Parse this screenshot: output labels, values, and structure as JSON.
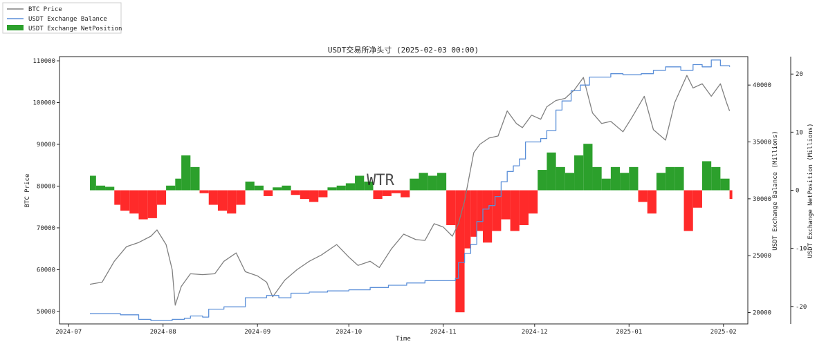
{
  "chart_data": {
    "type": "line",
    "title": "USDT交易所净头寸 (2025-02-03 00:00)",
    "xlabel": "Time",
    "ylabel_left": "BTC Price",
    "ylabel_right1": "USDT Exchange Balance (Millions)",
    "ylabel_right2": "USDT Exchange NetPosition (Millions)",
    "watermark": "WTR",
    "legend_position": "top-left",
    "legend": [
      {
        "label": "BTC Price",
        "color": "#808080",
        "kind": "line"
      },
      {
        "label": "USDT Exchange Balance",
        "color": "#5b8fd8",
        "kind": "line"
      },
      {
        "label": "USDT Exchange NetPosition",
        "color": "#2ca02c",
        "kind": "bar"
      }
    ],
    "x_range": [
      "2024-06-28",
      "2025-02-09"
    ],
    "x_ticks": [
      "2024-07",
      "2024-08",
      "2024-09",
      "2024-10",
      "2024-11",
      "2024-12",
      "2025-01",
      "2025-02"
    ],
    "y_left": {
      "range": [
        47000,
        111000
      ],
      "ticks": [
        50000,
        60000,
        70000,
        80000,
        90000,
        100000,
        110000
      ]
    },
    "y_right1": {
      "range": [
        19000,
        42500
      ],
      "ticks": [
        20000,
        25000,
        30000,
        35000,
        40000
      ]
    },
    "y_right2": {
      "range": [
        -23,
        23
      ],
      "ticks": [
        -20,
        -10,
        0,
        10,
        20
      ]
    },
    "positive_color": "#2ca02c",
    "negative_color": "#ff2a2a",
    "series": [
      {
        "name": "BTC Price",
        "axis": "left",
        "color": "#808080",
        "x": [
          "2024-07-08",
          "2024-07-12",
          "2024-07-16",
          "2024-07-20",
          "2024-07-24",
          "2024-07-28",
          "2024-07-30",
          "2024-08-02",
          "2024-08-04",
          "2024-08-05",
          "2024-08-07",
          "2024-08-10",
          "2024-08-14",
          "2024-08-18",
          "2024-08-21",
          "2024-08-25",
          "2024-08-28",
          "2024-09-01",
          "2024-09-04",
          "2024-09-06",
          "2024-09-10",
          "2024-09-14",
          "2024-09-18",
          "2024-09-22",
          "2024-09-27",
          "2024-10-01",
          "2024-10-04",
          "2024-10-08",
          "2024-10-11",
          "2024-10-15",
          "2024-10-19",
          "2024-10-23",
          "2024-10-26",
          "2024-10-29",
          "2024-11-01",
          "2024-11-04",
          "2024-11-06",
          "2024-11-08",
          "2024-11-11",
          "2024-11-13",
          "2024-11-16",
          "2024-11-19",
          "2024-11-22",
          "2024-11-25",
          "2024-11-27",
          "2024-11-30",
          "2024-12-03",
          "2024-12-05",
          "2024-12-08",
          "2024-12-11",
          "2024-12-14",
          "2024-12-17",
          "2024-12-20",
          "2024-12-23",
          "2024-12-26",
          "2024-12-30",
          "2025-01-02",
          "2025-01-06",
          "2025-01-09",
          "2025-01-13",
          "2025-01-16",
          "2025-01-20",
          "2025-01-22",
          "2025-01-25",
          "2025-01-28",
          "2025-01-31",
          "2025-02-02",
          "2025-02-03"
        ],
        "values": [
          56500,
          57000,
          62000,
          65500,
          66500,
          68000,
          69500,
          66000,
          60000,
          51500,
          56000,
          59000,
          58800,
          59000,
          62000,
          64000,
          59500,
          58500,
          57000,
          53500,
          57500,
          60000,
          62000,
          63500,
          66000,
          63000,
          61000,
          62000,
          60500,
          65000,
          68500,
          67200,
          67000,
          71000,
          70200,
          68000,
          71000,
          76500,
          88000,
          90000,
          91500,
          92000,
          98000,
          95000,
          94000,
          97000,
          96000,
          99000,
          100500,
          101000,
          103000,
          106000,
          97500,
          95000,
          95500,
          93000,
          96500,
          101500,
          93500,
          91000,
          100000,
          106500,
          103500,
          104500,
          101500,
          104500,
          100000,
          98000
        ]
      },
      {
        "name": "USDT Exchange Balance",
        "axis": "right1",
        "color": "#5b8fd8",
        "x": [
          "2024-07-08",
          "2024-07-18",
          "2024-07-24",
          "2024-07-28",
          "2024-08-04",
          "2024-08-08",
          "2024-08-10",
          "2024-08-14",
          "2024-08-16",
          "2024-08-21",
          "2024-08-25",
          "2024-08-28",
          "2024-09-04",
          "2024-09-08",
          "2024-09-12",
          "2024-09-18",
          "2024-09-24",
          "2024-10-01",
          "2024-10-08",
          "2024-10-14",
          "2024-10-20",
          "2024-10-26",
          "2024-11-01",
          "2024-11-05",
          "2024-11-06",
          "2024-11-08",
          "2024-11-10",
          "2024-11-12",
          "2024-11-14",
          "2024-11-16",
          "2024-11-18",
          "2024-11-20",
          "2024-11-22",
          "2024-11-24",
          "2024-11-26",
          "2024-11-28",
          "2024-12-01",
          "2024-12-03",
          "2024-12-05",
          "2024-12-08",
          "2024-12-10",
          "2024-12-13",
          "2024-12-16",
          "2024-12-19",
          "2024-12-22",
          "2024-12-26",
          "2024-12-30",
          "2025-01-05",
          "2025-01-09",
          "2025-01-13",
          "2025-01-18",
          "2025-01-22",
          "2025-01-25",
          "2025-01-28",
          "2025-01-31",
          "2025-02-03"
        ],
        "values": [
          19900,
          19800,
          19400,
          19300,
          19400,
          19500,
          19700,
          19600,
          20300,
          20500,
          20500,
          21300,
          21500,
          21300,
          21700,
          21800,
          21900,
          22000,
          22200,
          22400,
          22600,
          22800,
          22800,
          23000,
          24400,
          25200,
          26000,
          28000,
          29100,
          29400,
          30200,
          31500,
          32400,
          32900,
          33500,
          35000,
          35000,
          35300,
          36000,
          37800,
          38600,
          39500,
          40000,
          40700,
          40700,
          41000,
          40900,
          41000,
          41300,
          41600,
          41300,
          41800,
          41600,
          42200,
          41700,
          41600
        ]
      },
      {
        "name": "USDT Exchange NetPosition",
        "axis": "right2",
        "type": "bar",
        "x": [
          "2024-07-08",
          "2024-07-10",
          "2024-07-13",
          "2024-07-16",
          "2024-07-18",
          "2024-07-21",
          "2024-07-24",
          "2024-07-27",
          "2024-07-30",
          "2024-08-02",
          "2024-08-05",
          "2024-08-07",
          "2024-08-10",
          "2024-08-13",
          "2024-08-16",
          "2024-08-19",
          "2024-08-22",
          "2024-08-25",
          "2024-08-28",
          "2024-08-31",
          "2024-09-03",
          "2024-09-06",
          "2024-09-09",
          "2024-09-12",
          "2024-09-15",
          "2024-09-18",
          "2024-09-21",
          "2024-09-24",
          "2024-09-27",
          "2024-09-30",
          "2024-10-03",
          "2024-10-06",
          "2024-10-09",
          "2024-10-12",
          "2024-10-15",
          "2024-10-18",
          "2024-10-21",
          "2024-10-24",
          "2024-10-27",
          "2024-10-30",
          "2024-11-02",
          "2024-11-05",
          "2024-11-08",
          "2024-11-10",
          "2024-11-12",
          "2024-11-14",
          "2024-11-17",
          "2024-11-20",
          "2024-11-23",
          "2024-11-26",
          "2024-11-29",
          "2024-12-02",
          "2024-12-05",
          "2024-12-08",
          "2024-12-11",
          "2024-12-14",
          "2024-12-17",
          "2024-12-20",
          "2024-12-23",
          "2024-12-26",
          "2024-12-29",
          "2025-01-01",
          "2025-01-04",
          "2025-01-07",
          "2025-01-10",
          "2025-01-13",
          "2025-01-16",
          "2025-01-19",
          "2025-01-22",
          "2025-01-25",
          "2025-01-28",
          "2025-01-31",
          "2025-02-03"
        ],
        "values": [
          2.5,
          0.8,
          0.6,
          -2.5,
          -3.5,
          -4,
          -5,
          -4.8,
          -2.5,
          0.8,
          2,
          6,
          4,
          -0.5,
          -2.5,
          -3.5,
          -4,
          -2.5,
          1.5,
          0.8,
          -1,
          0.5,
          0.8,
          -0.8,
          -1.5,
          -2,
          -1.2,
          0.5,
          0.8,
          1.2,
          2.5,
          1.5,
          -1.5,
          -1,
          -0.5,
          -1.2,
          2,
          3,
          2.5,
          3,
          -6,
          -21,
          -10,
          -8,
          -7,
          -9,
          -7,
          -5,
          -7,
          -6,
          -4,
          3.5,
          6.5,
          4,
          3,
          6,
          8,
          4,
          2,
          4,
          3,
          4,
          -2,
          -4,
          3,
          4,
          4,
          -7,
          -3,
          5,
          4,
          2,
          -1.5
        ]
      }
    ]
  }
}
